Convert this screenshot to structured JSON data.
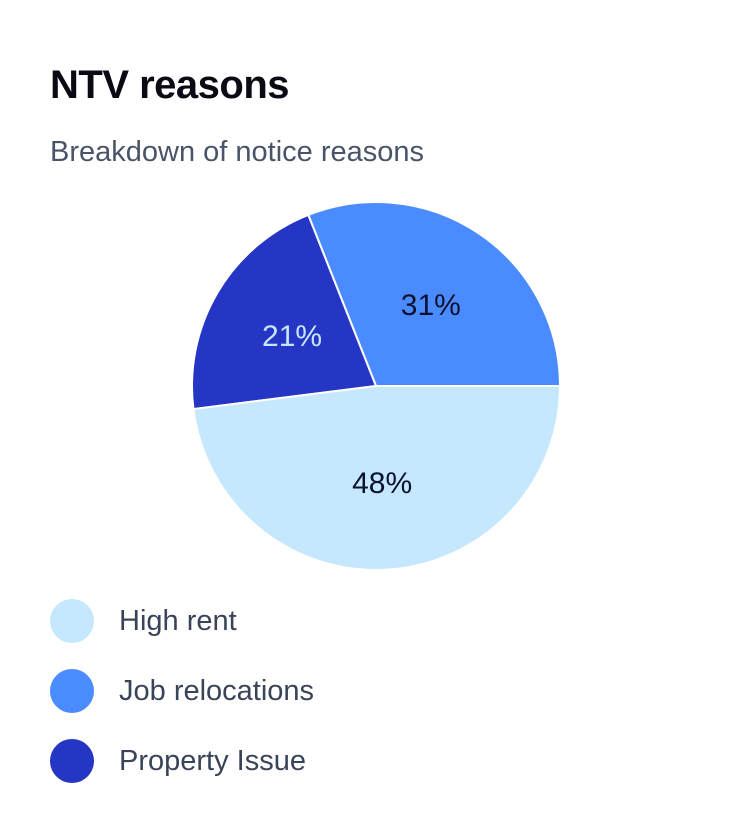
{
  "header": {
    "title": "NTV reasons",
    "subtitle": "Breakdown of notice reasons"
  },
  "chart_data": {
    "type": "pie",
    "title": "NTV reasons",
    "subtitle": "Breakdown of notice reasons",
    "unit": "%",
    "start_angle_deg": 0,
    "direction": "counterclockwise",
    "legend_position": "bottom-left",
    "slices": [
      {
        "label": "Job relocations",
        "value": 31,
        "display": "31%",
        "color": "#4a8cff",
        "label_color": "#0b1230"
      },
      {
        "label": "Property Issue",
        "value": 21,
        "display": "21%",
        "color": "#2636c4",
        "label_color": "#c8e6ff"
      },
      {
        "label": "High rent",
        "value": 48,
        "display": "48%",
        "color": "#c6e8ff",
        "label_color": "#0b1230"
      }
    ],
    "legend": [
      {
        "label": "High rent",
        "color": "#c6e8ff"
      },
      {
        "label": "Job relocations",
        "color": "#4a8cff"
      },
      {
        "label": "Property Issue",
        "color": "#2636c4"
      }
    ]
  }
}
